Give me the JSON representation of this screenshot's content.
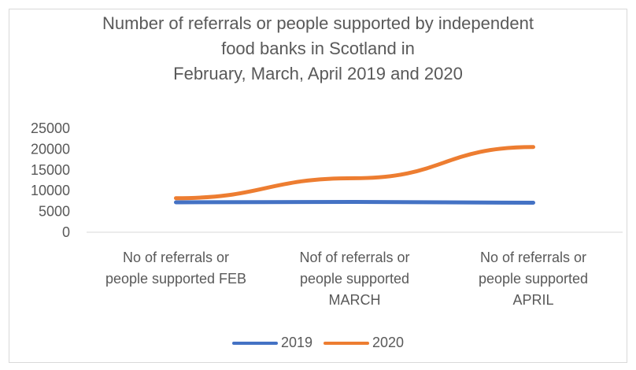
{
  "chart_data": {
    "type": "line",
    "title_lines": [
      "Number of referrals or people supported by independent",
      "food banks in Scotland in",
      "February, March, April 2019 and 2020"
    ],
    "categories": [
      [
        "No of referrals or",
        "people supported FEB"
      ],
      [
        "Nof of referrals or",
        "people supported",
        "MARCH"
      ],
      [
        "No of referrals or",
        "people supported",
        "APRIL"
      ]
    ],
    "series": [
      {
        "name": "2019",
        "color": "#4472c4",
        "values": [
          7200,
          7300,
          7100
        ]
      },
      {
        "name": "2020",
        "color": "#ed7d31",
        "values": [
          8200,
          13000,
          20500
        ]
      }
    ],
    "ylim": [
      0,
      25000
    ],
    "yticks": [
      "0",
      "5000",
      "10000",
      "15000",
      "20000",
      "25000"
    ],
    "grid": false,
    "legend_position": "bottom"
  }
}
